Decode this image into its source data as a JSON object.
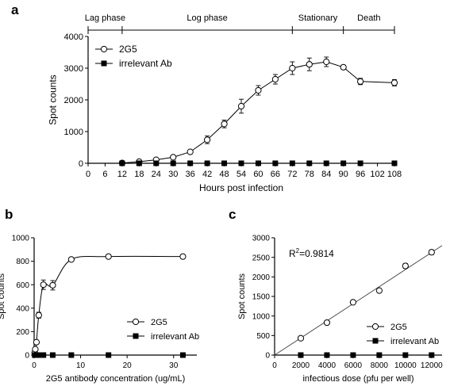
{
  "panel_labels": {
    "a": "a",
    "b": "b",
    "c": "c"
  },
  "chart_data": [
    {
      "panel": "a",
      "type": "line",
      "xlabel": "Hours post infection",
      "ylabel": "Spot counts",
      "xlim": [
        0,
        108
      ],
      "ylim": [
        0,
        4000
      ],
      "xticks": [
        0,
        6,
        12,
        18,
        24,
        30,
        36,
        42,
        48,
        54,
        60,
        66,
        72,
        78,
        84,
        90,
        96,
        102,
        108
      ],
      "yticks": [
        0,
        1000,
        2000,
        3000,
        4000
      ],
      "legend": "top-left",
      "phases": [
        {
          "label": "Lag phase",
          "start": 0,
          "end": 12
        },
        {
          "label": "Log phase",
          "start": 12,
          "end": 72
        },
        {
          "label": "Stationary",
          "start": 72,
          "end": 90
        },
        {
          "label": "Death",
          "start": 90,
          "end": 108
        }
      ],
      "series": [
        {
          "name": "2G5",
          "marker": "open-circle",
          "connect": "line",
          "x": [
            12,
            18,
            24,
            30,
            36,
            42,
            48,
            54,
            60,
            66,
            72,
            78,
            84,
            90,
            96,
            108
          ],
          "y": [
            10,
            50,
            110,
            190,
            360,
            740,
            1240,
            1800,
            2300,
            2650,
            3000,
            3120,
            3200,
            3030,
            2580,
            2540
          ],
          "error": [
            5,
            20,
            30,
            30,
            40,
            120,
            120,
            220,
            150,
            150,
            200,
            200,
            150,
            60,
            100,
            100
          ]
        },
        {
          "name": "irrelevant Ab",
          "marker": "filled-square",
          "connect": "line",
          "x": [
            12,
            18,
            24,
            30,
            36,
            42,
            48,
            54,
            60,
            66,
            72,
            78,
            84,
            90,
            96,
            108
          ],
          "y": [
            0,
            0,
            0,
            0,
            0,
            0,
            0,
            0,
            0,
            0,
            0,
            0,
            0,
            0,
            0,
            0
          ]
        }
      ]
    },
    {
      "panel": "b",
      "type": "line",
      "xlabel": "2G5 antibody concentration (ug/mL)",
      "ylabel": "Spot counts",
      "xlim": [
        0,
        35
      ],
      "ylim": [
        0,
        1000
      ],
      "xticks": [
        0,
        10,
        20,
        30
      ],
      "yticks": [
        0,
        200,
        400,
        600,
        800,
        1000
      ],
      "legend": "bottom-right",
      "series": [
        {
          "name": "2G5",
          "marker": "open-circle",
          "connect": "curve",
          "x": [
            0.125,
            0.25,
            0.5,
            1,
            2,
            4,
            8,
            16,
            32
          ],
          "y": [
            20,
            50,
            110,
            340,
            600,
            595,
            815,
            840,
            840
          ],
          "error": [
            5,
            10,
            15,
            25,
            40,
            40,
            10,
            10,
            5
          ]
        },
        {
          "name": "irrelevant Ab",
          "marker": "filled-square",
          "connect": "line",
          "x": [
            0.125,
            0.25,
            0.5,
            1,
            2,
            4,
            8,
            16,
            32
          ],
          "y": [
            0,
            0,
            0,
            0,
            0,
            0,
            0,
            0,
            0
          ]
        }
      ]
    },
    {
      "panel": "c",
      "type": "scatter",
      "xlabel": "infectious dose (pfu per well)",
      "ylabel": "Spot counts",
      "xlim": [
        0,
        12800
      ],
      "ylim": [
        0,
        3000
      ],
      "xticks": [
        0,
        2000,
        4000,
        6000,
        8000,
        10000,
        12000
      ],
      "yticks": [
        0,
        500,
        1000,
        1500,
        2000,
        2500,
        3000
      ],
      "legend": "bottom-right",
      "annotation": {
        "prefix": "R",
        "sup": "2",
        "value": "=0.9814"
      },
      "fit_line": {
        "x": [
          0,
          12800
        ],
        "y": [
          0,
          2800
        ]
      },
      "series": [
        {
          "name": "2G5",
          "marker": "open-circle",
          "connect": "none",
          "x": [
            2000,
            4000,
            6000,
            8000,
            10000,
            12000
          ],
          "y": [
            430,
            830,
            1350,
            1650,
            2280,
            2630
          ],
          "error": [
            20,
            30,
            30,
            30,
            60,
            60
          ]
        },
        {
          "name": "irrelevant Ab",
          "marker": "filled-square",
          "connect": "none",
          "x": [
            2000,
            4000,
            6000,
            8000,
            10000,
            12000
          ],
          "y": [
            0,
            0,
            0,
            0,
            0,
            0
          ]
        }
      ]
    }
  ]
}
